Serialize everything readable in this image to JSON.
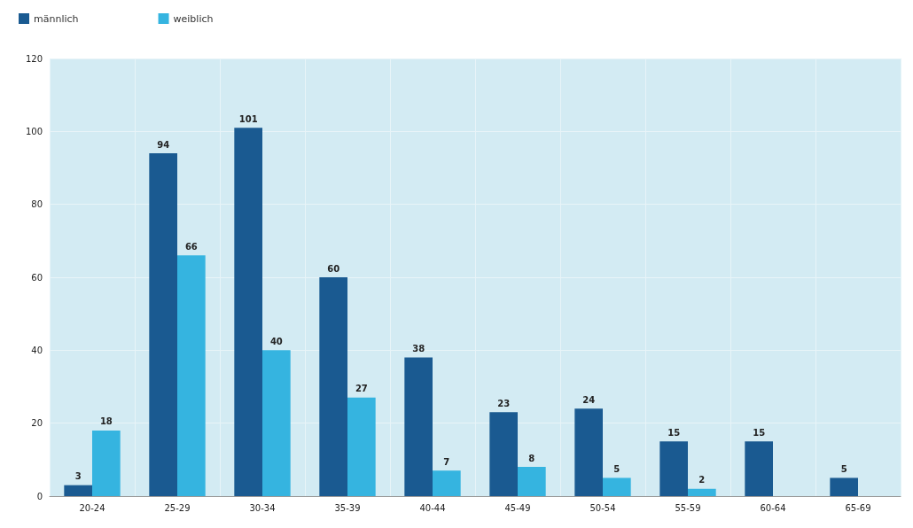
{
  "chart_data": {
    "type": "bar",
    "categories": [
      "20-24",
      "25-29",
      "30-34",
      "35-39",
      "40-44",
      "45-49",
      "50-54",
      "55-59",
      "60-64",
      "65-69"
    ],
    "series": [
      {
        "name": "männlich",
        "color": "#1a5a91",
        "values": [
          3,
          94,
          101,
          60,
          38,
          23,
          24,
          15,
          15,
          5
        ]
      },
      {
        "name": "weiblich",
        "color": "#35b4e0",
        "values": [
          18,
          66,
          40,
          27,
          7,
          8,
          5,
          2,
          null,
          null
        ]
      }
    ],
    "ylim": [
      0,
      120
    ],
    "yticks": [
      0,
      20,
      40,
      60,
      80,
      100,
      120
    ],
    "grid": true,
    "legend": "top left",
    "data_labels": true
  }
}
